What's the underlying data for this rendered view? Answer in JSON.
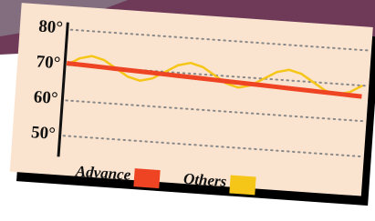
{
  "chart_data": {
    "type": "line",
    "categories": [
      null,
      null,
      null,
      null,
      null,
      null,
      null,
      null,
      null,
      null,
      null,
      null,
      null,
      null,
      null,
      null,
      null,
      null,
      null,
      null,
      null,
      null,
      null,
      null,
      null
    ],
    "series": [
      {
        "name": "Advance",
        "color": "#ee4423",
        "values": [
          70.5,
          70.35,
          70.2,
          70.05,
          69.9,
          69.75,
          69.6,
          69.45,
          69.3,
          69.15,
          69,
          68.85,
          68.7,
          68.55,
          68.4,
          68.25,
          68.1,
          67.95,
          67.8,
          67.65,
          67.5,
          67.35,
          67.2,
          67.05,
          66.9
        ]
      },
      {
        "name": "Others",
        "color": "#f5c518",
        "values": [
          70,
          72.1,
          73,
          72.1,
          70,
          67.9,
          67,
          67.9,
          70,
          72.1,
          73,
          72.1,
          70,
          67.9,
          67,
          67.9,
          70,
          72.1,
          73,
          72.1,
          70,
          67.9,
          67,
          67.9,
          70
        ]
      }
    ],
    "ylim": [
      44,
      82
    ],
    "yticks": [
      {
        "value": 50,
        "label": "50°"
      },
      {
        "value": 60,
        "label": "60°"
      },
      {
        "value": 70,
        "label": "70°"
      },
      {
        "value": 80,
        "label": "80°"
      }
    ],
    "grid": true
  }
}
